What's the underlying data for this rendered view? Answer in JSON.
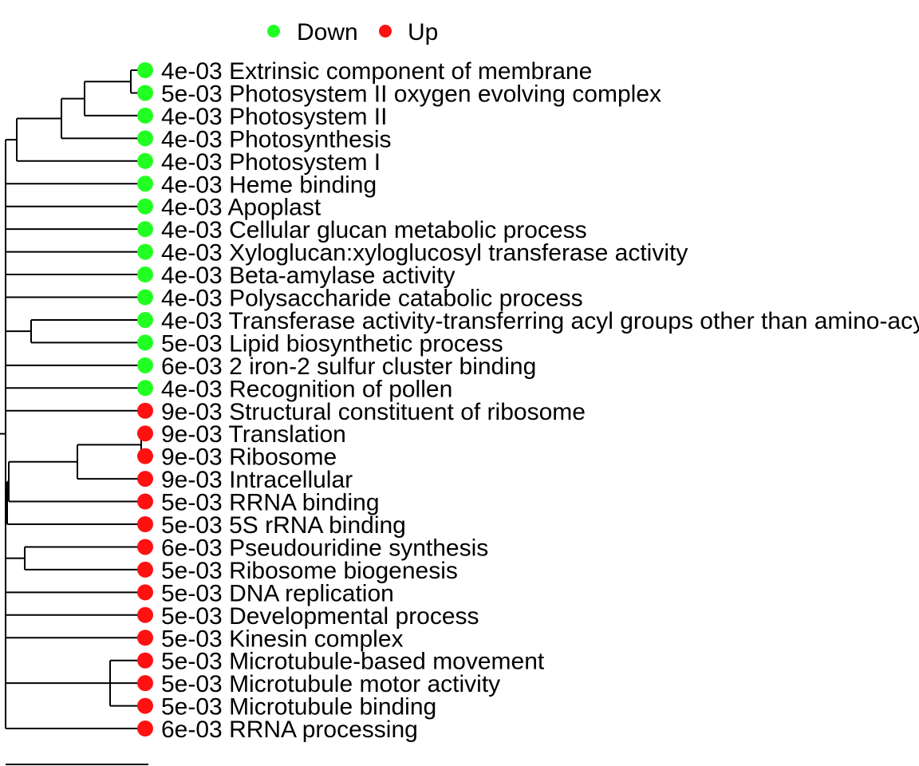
{
  "legend": {
    "items": [
      {
        "label": "Down",
        "color": "#22ff22"
      },
      {
        "label": "Up",
        "color": "#ff1111"
      }
    ]
  },
  "leaves": [
    {
      "pvalue": "4e-03",
      "term": "Extrinsic component of membrane",
      "direction": "Down"
    },
    {
      "pvalue": "5e-03",
      "term": "Photosystem II oxygen evolving complex",
      "direction": "Down"
    },
    {
      "pvalue": "4e-03",
      "term": "Photosystem II",
      "direction": "Down"
    },
    {
      "pvalue": "4e-03",
      "term": "Photosynthesis",
      "direction": "Down"
    },
    {
      "pvalue": "4e-03",
      "term": "Photosystem I",
      "direction": "Down"
    },
    {
      "pvalue": "4e-03",
      "term": "Heme binding",
      "direction": "Down"
    },
    {
      "pvalue": "4e-03",
      "term": "Apoplast",
      "direction": "Down"
    },
    {
      "pvalue": "4e-03",
      "term": "Cellular glucan metabolic process",
      "direction": "Down"
    },
    {
      "pvalue": "4e-03",
      "term": "Xyloglucan:xyloglucosyl transferase activity",
      "direction": "Down"
    },
    {
      "pvalue": "4e-03",
      "term": "Beta-amylase activity",
      "direction": "Down"
    },
    {
      "pvalue": "4e-03",
      "term": "Polysaccharide catabolic process",
      "direction": "Down"
    },
    {
      "pvalue": "4e-03",
      "term": "Transferase activity-transferring acyl groups other than amino-acyl groups",
      "direction": "Down"
    },
    {
      "pvalue": "5e-03",
      "term": "Lipid biosynthetic process",
      "direction": "Down"
    },
    {
      "pvalue": "6e-03",
      "term": "2 iron-2 sulfur cluster binding",
      "direction": "Down"
    },
    {
      "pvalue": "4e-03",
      "term": "Recognition of pollen",
      "direction": "Down"
    },
    {
      "pvalue": "9e-03",
      "term": "Structural constituent of ribosome",
      "direction": "Up"
    },
    {
      "pvalue": "9e-03",
      "term": "Translation",
      "direction": "Up"
    },
    {
      "pvalue": "9e-03",
      "term": "Ribosome",
      "direction": "Up"
    },
    {
      "pvalue": "9e-03",
      "term": "Intracellular",
      "direction": "Up"
    },
    {
      "pvalue": "5e-03",
      "term": "RRNA binding",
      "direction": "Up"
    },
    {
      "pvalue": "5e-03",
      "term": "5S rRNA binding",
      "direction": "Up"
    },
    {
      "pvalue": "6e-03",
      "term": "Pseudouridine synthesis",
      "direction": "Up"
    },
    {
      "pvalue": "5e-03",
      "term": "Ribosome biogenesis",
      "direction": "Up"
    },
    {
      "pvalue": "5e-03",
      "term": "DNA replication",
      "direction": "Up"
    },
    {
      "pvalue": "5e-03",
      "term": "Developmental process",
      "direction": "Up"
    },
    {
      "pvalue": "5e-03",
      "term": "Kinesin complex",
      "direction": "Up"
    },
    {
      "pvalue": "5e-03",
      "term": "Microtubule-based movement",
      "direction": "Up"
    },
    {
      "pvalue": "5e-03",
      "term": "Microtubule motor activity",
      "direction": "Up"
    },
    {
      "pvalue": "5e-03",
      "term": "Microtubule binding",
      "direction": "Up"
    },
    {
      "pvalue": "6e-03",
      "term": "RRNA processing",
      "direction": "Up"
    }
  ]
}
